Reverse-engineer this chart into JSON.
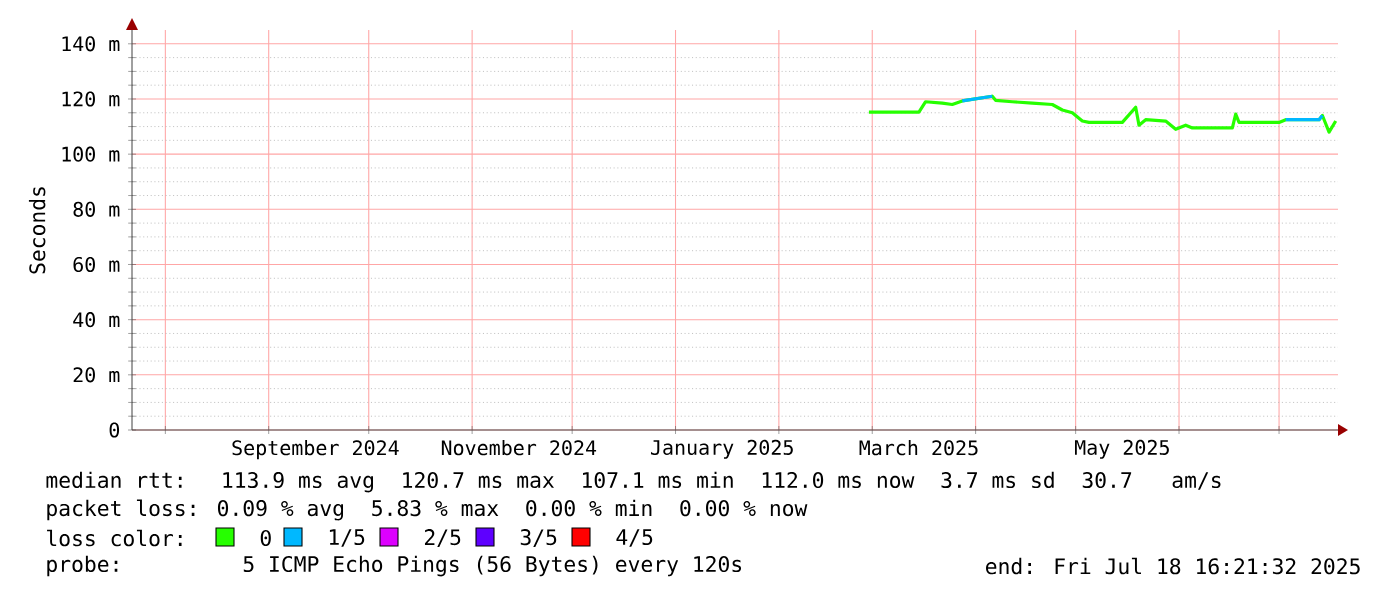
{
  "chart_data": {
    "type": "line",
    "ylabel": "Seconds",
    "x": [
      "2025-02-28",
      "2025-03-15",
      "2025-03-17",
      "2025-03-22",
      "2025-03-25",
      "2025-03-28",
      "2025-04-06",
      "2025-04-07",
      "2025-04-12",
      "2025-04-18",
      "2025-04-24",
      "2025-04-27",
      "2025-04-30",
      "2025-05-03",
      "2025-05-05",
      "2025-05-15",
      "2025-05-19",
      "2025-05-20",
      "2025-05-22",
      "2025-05-28",
      "2025-05-31",
      "2025-06-03",
      "2025-06-05",
      "2025-06-17",
      "2025-06-18",
      "2025-06-19",
      "2025-07-01",
      "2025-07-03",
      "2025-07-13",
      "2025-07-14",
      "2025-07-16",
      "2025-07-18"
    ],
    "series": [
      {
        "name": "0",
        "color": "#26ff00",
        "values": [
          115.2,
          115.2,
          119,
          118.5,
          118,
          119.3,
          121,
          119.5,
          119,
          118.5,
          118,
          116,
          115,
          112,
          111.5,
          111.5,
          117,
          110.5,
          112.5,
          112,
          109,
          110.5,
          109.5,
          109.5,
          114.5,
          111.5,
          111.5,
          112.5,
          112.5,
          114,
          108,
          112
        ]
      },
      {
        "name": "1/5",
        "color": "#00b8ff",
        "values": [
          null,
          null,
          null,
          null,
          null,
          119.3,
          121,
          null,
          null,
          null,
          null,
          null,
          null,
          null,
          null,
          null,
          null,
          null,
          null,
          null,
          null,
          null,
          null,
          null,
          null,
          null,
          null,
          112.5,
          112.5,
          114,
          null,
          null
        ]
      },
      {
        "name": "2/5",
        "color": "#dd00ff",
        "values": [
          null,
          null,
          null,
          null,
          null,
          null,
          null,
          null,
          null,
          null,
          null,
          null,
          null,
          null,
          null,
          null,
          null,
          null,
          null,
          null,
          null,
          null,
          null,
          null,
          null,
          null,
          null,
          null,
          null,
          null,
          null,
          null
        ]
      },
      {
        "name": "3/5",
        "color": "#5e00ff",
        "values": [
          null,
          null,
          null,
          null,
          null,
          null,
          null,
          null,
          null,
          null,
          null,
          null,
          null,
          null,
          null,
          null,
          null,
          null,
          null,
          null,
          null,
          null,
          null,
          null,
          null,
          null,
          null,
          null,
          null,
          null,
          null,
          null
        ]
      },
      {
        "name": "4/5",
        "color": "#ff0000",
        "values": [
          null,
          null,
          null,
          null,
          null,
          null,
          null,
          null,
          null,
          null,
          null,
          null,
          null,
          null,
          null,
          null,
          null,
          null,
          null,
          null,
          null,
          null,
          null,
          null,
          null,
          null,
          null,
          null,
          null,
          null,
          null,
          null
        ]
      }
    ],
    "xlim": [
      "2024-07-22",
      "2025-07-18T16:21"
    ],
    "xticks": [
      {
        "value": "2024-08-01",
        "label": null
      },
      {
        "value": "2024-09-01",
        "label": null
      },
      {
        "value": "2024-10-01",
        "label": null
      },
      {
        "value": "2024-11-01",
        "label": null
      },
      {
        "value": "2024-12-01",
        "label": null
      },
      {
        "value": "2025-01-01",
        "label": null
      },
      {
        "value": "2025-02-01",
        "label": null
      },
      {
        "value": "2025-03-01",
        "label": null
      },
      {
        "value": "2025-04-01",
        "label": null
      },
      {
        "value": "2025-05-01",
        "label": null
      },
      {
        "value": "2025-06-01",
        "label": null
      },
      {
        "value": "2025-07-01",
        "label": null
      },
      {
        "value": "2024-09-15",
        "label": "September 2024"
      },
      {
        "value": "2024-11-15",
        "label": "November 2024"
      },
      {
        "value": "2025-01-15",
        "label": "January 2025"
      },
      {
        "value": "2025-03-15",
        "label": "March 2025"
      },
      {
        "value": "2025-05-15",
        "label": "May 2025"
      }
    ],
    "ylim": [
      0,
      145
    ],
    "yticks": [
      0,
      {
        "value": 20,
        "label": "20 m"
      },
      {
        "value": 40,
        "label": "40 m"
      },
      {
        "value": 60,
        "label": "60 m"
      },
      {
        "value": 80,
        "label": "80 m"
      },
      {
        "value": 100,
        "label": "100 m"
      },
      {
        "value": 120,
        "label": "120 m"
      },
      {
        "value": 140,
        "label": "140 m"
      }
    ],
    "grid": true,
    "legend": "bottom",
    "legend_title": "loss color:",
    "marker": "none",
    "line_style": "solid",
    "annotations": [
      "median rtt:  113.9 ms avg  120.7 ms max  107.1 ms min  112.0 ms now  3.7 ms sd  30.7   am/s",
      "packet loss: 0.09 % avg  5.83 % max  0.00 % min  0.00 % now",
      "probe:       5 ICMP Echo Pings (56 Bytes) every 120s",
      "end: Fri Jul 18 16:21:32 2025"
    ]
  }
}
